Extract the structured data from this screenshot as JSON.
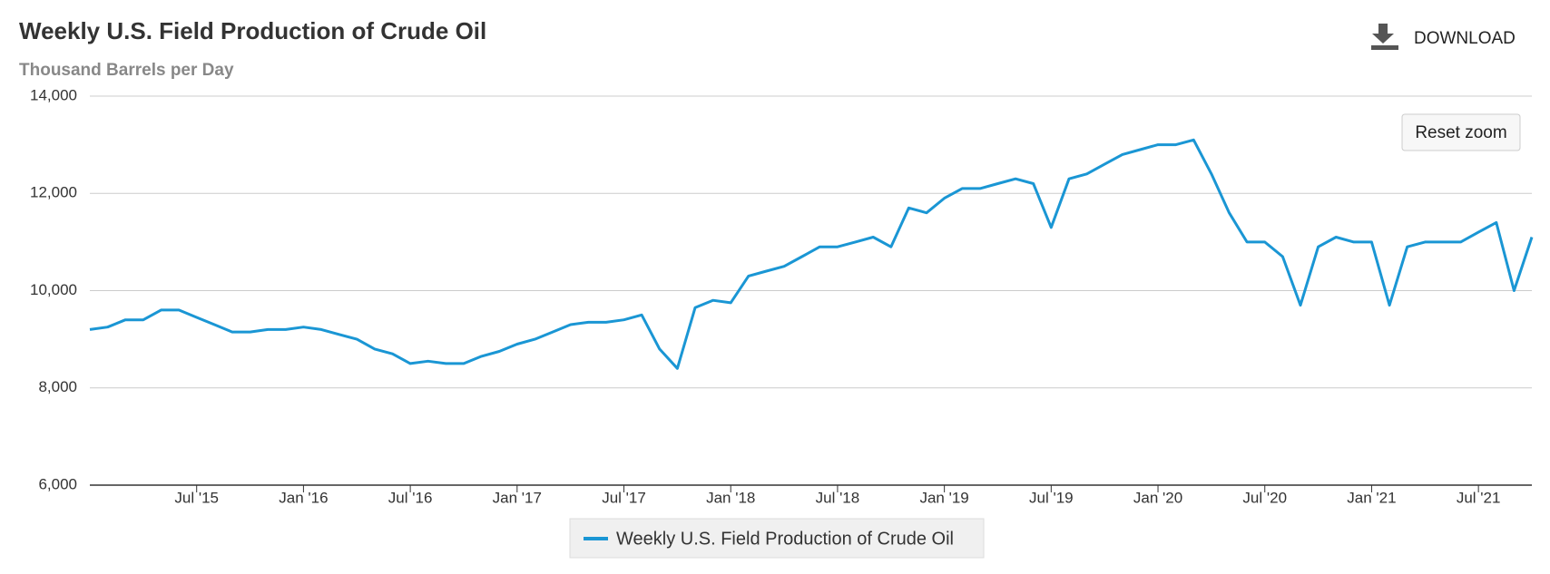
{
  "chart_data": {
    "type": "line",
    "title": "Weekly U.S. Field Production of Crude Oil",
    "subtitle": "Thousand Barrels per Day",
    "x": [
      "2015-01",
      "2015-02",
      "2015-03",
      "2015-04",
      "2015-05",
      "2015-06",
      "2015-07",
      "2015-08",
      "2015-09",
      "2015-10",
      "2015-11",
      "2015-12",
      "2016-01",
      "2016-02",
      "2016-03",
      "2016-04",
      "2016-05",
      "2016-06",
      "2016-07",
      "2016-08",
      "2016-09",
      "2016-10",
      "2016-11",
      "2016-12",
      "2017-01",
      "2017-02",
      "2017-03",
      "2017-04",
      "2017-05",
      "2017-06",
      "2017-07",
      "2017-08",
      "2017-09",
      "2017-10",
      "2017-11",
      "2017-12",
      "2018-01",
      "2018-02",
      "2018-03",
      "2018-04",
      "2018-05",
      "2018-06",
      "2018-07",
      "2018-08",
      "2018-09",
      "2018-10",
      "2018-11",
      "2018-12",
      "2019-01",
      "2019-02",
      "2019-03",
      "2019-04",
      "2019-05",
      "2019-06",
      "2019-07",
      "2019-08",
      "2019-09",
      "2019-10",
      "2019-11",
      "2019-12",
      "2020-01",
      "2020-02",
      "2020-03",
      "2020-04",
      "2020-05",
      "2020-06",
      "2020-07",
      "2020-08",
      "2020-09",
      "2020-10",
      "2020-11",
      "2020-12",
      "2021-01",
      "2021-02",
      "2021-03",
      "2021-04",
      "2021-05",
      "2021-06",
      "2021-07",
      "2021-08",
      "2021-09",
      "2021-10"
    ],
    "series": [
      {
        "name": "Weekly U.S. Field Production of Crude Oil",
        "color": "#1a96d4",
        "values": [
          9200,
          9250,
          9400,
          9400,
          9600,
          9600,
          9450,
          9300,
          9150,
          9150,
          9200,
          9200,
          9250,
          9200,
          9100,
          9000,
          8800,
          8700,
          8500,
          8550,
          8500,
          8500,
          8650,
          8750,
          8900,
          9000,
          9150,
          9300,
          9350,
          9350,
          9400,
          9500,
          8800,
          8400,
          9650,
          9800,
          9750,
          10300,
          10400,
          10500,
          10700,
          10900,
          10900,
          11000,
          11100,
          10900,
          11700,
          11600,
          11900,
          12100,
          12100,
          12200,
          12300,
          12200,
          11300,
          12300,
          12400,
          12600,
          12800,
          12900,
          13000,
          13000,
          13100,
          12400,
          11600,
          11000,
          11000,
          10700,
          9700,
          10900,
          11100,
          11000,
          11000,
          9700,
          10900,
          11000,
          11000,
          11000,
          11200,
          11400,
          10000,
          11100
        ]
      }
    ],
    "xlim": [
      "2015-01",
      "2021-10"
    ],
    "xticks": [
      {
        "value": "2015-07",
        "label": "Jul '15"
      },
      {
        "value": "2016-01",
        "label": "Jan '16"
      },
      {
        "value": "2016-07",
        "label": "Jul '16"
      },
      {
        "value": "2017-01",
        "label": "Jan '17"
      },
      {
        "value": "2017-07",
        "label": "Jul '17"
      },
      {
        "value": "2018-01",
        "label": "Jan '18"
      },
      {
        "value": "2018-07",
        "label": "Jul '18"
      },
      {
        "value": "2019-01",
        "label": "Jan '19"
      },
      {
        "value": "2019-07",
        "label": "Jul '19"
      },
      {
        "value": "2020-01",
        "label": "Jan '20"
      },
      {
        "value": "2020-07",
        "label": "Jul '20"
      },
      {
        "value": "2021-01",
        "label": "Jan '21"
      },
      {
        "value": "2021-07",
        "label": "Jul '21"
      }
    ],
    "ylim": [
      6000,
      14000
    ],
    "yticks": [
      {
        "value": 6000,
        "label": "6,000"
      },
      {
        "value": 8000,
        "label": "8,000"
      },
      {
        "value": 10000,
        "label": "10,000"
      },
      {
        "value": 12000,
        "label": "12,000"
      },
      {
        "value": 14000,
        "label": "14,000"
      }
    ],
    "grid": true
  },
  "toolbar": {
    "download": "DOWNLOAD",
    "reset_zoom": "Reset zoom"
  }
}
